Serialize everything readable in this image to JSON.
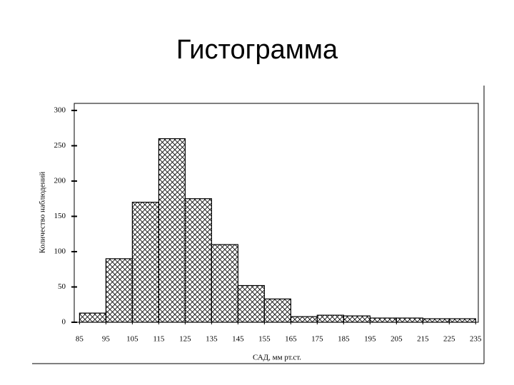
{
  "chart_data": {
    "type": "histogram",
    "title": "Гистограмма",
    "x_label": "САД, мм рт.ст.",
    "y_label": "Количество наблюдений",
    "bins": [
      85,
      95,
      105,
      115,
      125,
      135,
      145,
      155,
      165,
      175,
      185,
      195,
      205,
      215,
      225,
      235
    ],
    "values": [
      13,
      90,
      170,
      260,
      175,
      110,
      52,
      33,
      8,
      10,
      9,
      6,
      6,
      5,
      5
    ],
    "color": "#000000",
    "xlim": [
      83,
      236
    ],
    "xticks": [
      85,
      95,
      105,
      115,
      125,
      135,
      145,
      155,
      165,
      175,
      185,
      195,
      205,
      215,
      225,
      235
    ],
    "ylim": [
      0,
      310
    ],
    "yticks": [
      0,
      50,
      100,
      150,
      200,
      250,
      300
    ]
  }
}
